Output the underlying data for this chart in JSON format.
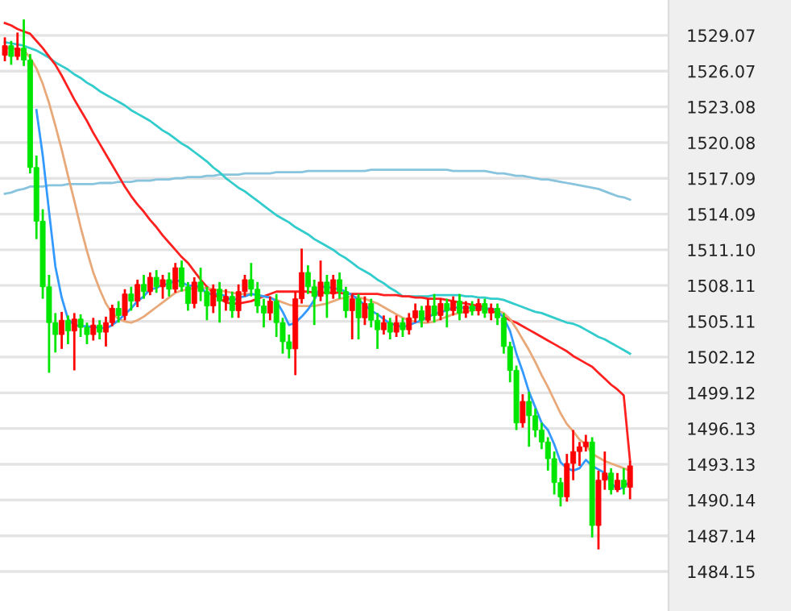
{
  "chart_data": {
    "type": "candlestick",
    "categories": [
      null,
      null,
      null,
      null,
      null,
      null,
      null,
      null,
      null,
      null,
      null,
      null,
      null,
      null,
      null,
      null,
      null,
      null,
      null,
      null,
      null,
      null,
      null,
      null,
      null,
      null,
      null,
      null,
      null,
      null,
      null,
      null,
      null,
      null,
      null,
      null,
      null,
      null,
      null,
      null,
      null,
      null,
      null,
      null,
      null,
      null,
      null,
      null,
      null,
      null,
      null,
      null,
      null,
      null,
      null,
      null,
      null,
      null,
      null,
      null,
      null,
      null,
      null,
      null,
      null,
      null,
      null,
      null,
      null,
      null,
      null,
      null,
      null,
      null,
      null,
      null,
      null,
      null,
      null,
      null,
      null,
      null,
      null,
      null,
      null,
      null,
      null,
      null,
      null,
      null,
      null,
      null,
      null,
      null,
      null,
      null,
      null,
      null,
      null,
      null
    ],
    "ohlc": [
      [
        1527.4,
        1528.9,
        1526.9,
        1528.2
      ],
      [
        1528.2,
        1528.6,
        1526.6,
        1527.3
      ],
      [
        1527.3,
        1529.3,
        1527.0,
        1528.0
      ],
      [
        1528.0,
        1530.4,
        1526.5,
        1527.0
      ],
      [
        1527.0,
        1527.5,
        1517.5,
        1518.0
      ],
      [
        1518.0,
        1519.0,
        1512.0,
        1513.5
      ],
      [
        1513.5,
        1514.5,
        1507.0,
        1508.0
      ],
      [
        1508.0,
        1509.0,
        1500.8,
        1505.0
      ],
      [
        1505.0,
        1505.8,
        1502.5,
        1504.0
      ],
      [
        1504.0,
        1505.9,
        1502.8,
        1505.2
      ],
      [
        1505.2,
        1505.6,
        1503.2,
        1504.3
      ],
      [
        1504.3,
        1505.8,
        1501.0,
        1505.3
      ],
      [
        1505.3,
        1505.7,
        1503.8,
        1504.6
      ],
      [
        1504.6,
        1505.0,
        1503.2,
        1504.0
      ],
      [
        1504.0,
        1505.4,
        1503.5,
        1504.8
      ],
      [
        1504.8,
        1505.2,
        1503.6,
        1504.2
      ],
      [
        1504.2,
        1505.5,
        1503.0,
        1505.0
      ],
      [
        1505.0,
        1506.5,
        1504.7,
        1506.2
      ],
      [
        1506.2,
        1506.8,
        1505.0,
        1505.6
      ],
      [
        1505.6,
        1507.8,
        1505.2,
        1507.4
      ],
      [
        1507.4,
        1508.0,
        1506.0,
        1506.8
      ],
      [
        1506.8,
        1508.6,
        1506.3,
        1508.2
      ],
      [
        1508.2,
        1509.0,
        1507.0,
        1507.6
      ],
      [
        1507.6,
        1509.2,
        1507.3,
        1508.8
      ],
      [
        1508.8,
        1509.4,
        1507.5,
        1508.0
      ],
      [
        1508.0,
        1509.0,
        1507.0,
        1508.6
      ],
      [
        1508.6,
        1509.2,
        1507.2,
        1507.8
      ],
      [
        1507.8,
        1510.0,
        1507.5,
        1509.6
      ],
      [
        1509.6,
        1510.2,
        1507.6,
        1508.0
      ],
      [
        1508.0,
        1508.4,
        1506.0,
        1506.6
      ],
      [
        1506.6,
        1508.8,
        1506.2,
        1508.4
      ],
      [
        1508.4,
        1509.6,
        1506.8,
        1507.6
      ],
      [
        1507.6,
        1508.0,
        1505.2,
        1506.4
      ],
      [
        1506.4,
        1508.2,
        1505.8,
        1507.8
      ],
      [
        1507.8,
        1508.4,
        1505.0,
        1506.8
      ],
      [
        1506.8,
        1507.8,
        1506.0,
        1507.2
      ],
      [
        1507.2,
        1507.6,
        1505.4,
        1506.0
      ],
      [
        1506.0,
        1508.2,
        1505.4,
        1507.6
      ],
      [
        1507.6,
        1509.0,
        1507.2,
        1508.6
      ],
      [
        1508.6,
        1510.0,
        1507.2,
        1507.8
      ],
      [
        1507.8,
        1508.4,
        1505.8,
        1506.4
      ],
      [
        1506.4,
        1507.0,
        1504.6,
        1505.8
      ],
      [
        1505.8,
        1507.2,
        1505.2,
        1506.8
      ],
      [
        1506.8,
        1507.4,
        1503.8,
        1505.0
      ],
      [
        1505.0,
        1505.4,
        1502.4,
        1503.4
      ],
      [
        1503.4,
        1504.0,
        1502.0,
        1502.8
      ],
      [
        1502.8,
        1507.6,
        1500.6,
        1507.0
      ],
      [
        1507.0,
        1511.2,
        1506.6,
        1509.2
      ],
      [
        1509.2,
        1509.8,
        1507.4,
        1508.0
      ],
      [
        1508.0,
        1508.6,
        1504.8,
        1507.2
      ],
      [
        1507.2,
        1510.2,
        1506.8,
        1508.4
      ],
      [
        1508.4,
        1509.0,
        1505.4,
        1507.4
      ],
      [
        1507.4,
        1509.0,
        1507.0,
        1508.6
      ],
      [
        1508.6,
        1509.2,
        1507.0,
        1507.6
      ],
      [
        1507.6,
        1508.0,
        1505.4,
        1506.0
      ],
      [
        1506.0,
        1507.4,
        1503.6,
        1507.0
      ],
      [
        1507.0,
        1507.4,
        1503.6,
        1505.4
      ],
      [
        1505.4,
        1507.2,
        1504.8,
        1506.6
      ],
      [
        1506.6,
        1507.0,
        1504.6,
        1505.2
      ],
      [
        1505.2,
        1505.8,
        1502.8,
        1504.4
      ],
      [
        1504.4,
        1505.6,
        1504.0,
        1505.0
      ],
      [
        1505.0,
        1505.4,
        1503.6,
        1504.2
      ],
      [
        1504.2,
        1505.6,
        1503.8,
        1505.0
      ],
      [
        1505.0,
        1505.4,
        1503.8,
        1504.4
      ],
      [
        1504.4,
        1505.8,
        1504.0,
        1505.4
      ],
      [
        1505.4,
        1506.6,
        1505.0,
        1506.0
      ],
      [
        1506.0,
        1506.4,
        1504.6,
        1505.2
      ],
      [
        1505.2,
        1507.0,
        1505.0,
        1506.4
      ],
      [
        1506.4,
        1507.4,
        1505.0,
        1505.6
      ],
      [
        1505.6,
        1507.0,
        1505.2,
        1506.6
      ],
      [
        1506.6,
        1507.0,
        1504.6,
        1506.0
      ],
      [
        1506.0,
        1507.2,
        1505.6,
        1506.8
      ],
      [
        1506.8,
        1507.4,
        1505.2,
        1505.8
      ],
      [
        1505.8,
        1506.8,
        1505.4,
        1506.4
      ],
      [
        1506.4,
        1506.8,
        1505.6,
        1506.0
      ],
      [
        1506.0,
        1507.0,
        1505.6,
        1506.6
      ],
      [
        1506.6,
        1507.0,
        1505.4,
        1505.8
      ],
      [
        1505.8,
        1506.6,
        1505.2,
        1506.2
      ],
      [
        1506.2,
        1506.6,
        1504.8,
        1505.4
      ],
      [
        1505.4,
        1505.8,
        1502.4,
        1503.0
      ],
      [
        1503.0,
        1503.4,
        1500.0,
        1501.0
      ],
      [
        1501.0,
        1501.4,
        1496.0,
        1496.6
      ],
      [
        1496.6,
        1499.0,
        1496.2,
        1498.4
      ],
      [
        1498.4,
        1499.2,
        1494.6,
        1497.2
      ],
      [
        1497.2,
        1497.8,
        1495.4,
        1496.0
      ],
      [
        1496.0,
        1496.6,
        1494.4,
        1495.0
      ],
      [
        1495.0,
        1495.4,
        1492.6,
        1493.6
      ],
      [
        1493.6,
        1494.2,
        1490.6,
        1491.6
      ],
      [
        1491.6,
        1492.0,
        1489.6,
        1490.4
      ],
      [
        1490.4,
        1494.0,
        1490.0,
        1493.2
      ],
      [
        1493.2,
        1496.0,
        1491.8,
        1494.2
      ],
      [
        1494.2,
        1495.0,
        1493.0,
        1494.6
      ],
      [
        1494.6,
        1495.6,
        1494.2,
        1495.0
      ],
      [
        1495.0,
        1495.4,
        1487.0,
        1488.0
      ],
      [
        1488.0,
        1492.6,
        1486.0,
        1491.8
      ],
      [
        1491.8,
        1494.2,
        1491.0,
        1492.4
      ],
      [
        1492.4,
        1492.8,
        1490.6,
        1491.0
      ],
      [
        1491.0,
        1492.4,
        1490.8,
        1491.8
      ],
      [
        1491.8,
        1492.8,
        1490.6,
        1491.2
      ],
      [
        1491.2,
        1493.4,
        1490.2,
        1493.0
      ]
    ],
    "colors": [
      "#ff0000",
      "#00e600",
      "#ff0000",
      "#00e600",
      "#00e600",
      "#00e600",
      "#00e600",
      "#00e600",
      "#00e600",
      "#ff0000",
      "#00e600",
      "#ff0000",
      "#00e600",
      "#00e600",
      "#ff0000",
      "#00e600",
      "#ff0000",
      "#ff0000",
      "#00e600",
      "#ff0000",
      "#00e600",
      "#ff0000",
      "#00e600",
      "#ff0000",
      "#00e600",
      "#ff0000",
      "#00e600",
      "#ff0000",
      "#00e600",
      "#00e600",
      "#ff0000",
      "#00e600",
      "#00e600",
      "#ff0000",
      "#00e600",
      "#ff0000",
      "#00e600",
      "#ff0000",
      "#ff0000",
      "#00e600",
      "#00e600",
      "#00e600",
      "#ff0000",
      "#00e600",
      "#00e600",
      "#00e600",
      "#ff0000",
      "#ff0000",
      "#00e600",
      "#00e600",
      "#ff0000",
      "#00e600",
      "#ff0000",
      "#00e600",
      "#00e600",
      "#ff0000",
      "#00e600",
      "#ff0000",
      "#00e600",
      "#00e600",
      "#ff0000",
      "#00e600",
      "#ff0000",
      "#00e600",
      "#ff0000",
      "#ff0000",
      "#00e600",
      "#ff0000",
      "#00e600",
      "#ff0000",
      "#00e600",
      "#ff0000",
      "#00e600",
      "#ff0000",
      "#00e600",
      "#ff0000",
      "#00e600",
      "#ff0000",
      "#00e600",
      "#00e600",
      "#00e600",
      "#00e600",
      "#ff0000",
      "#00e600",
      "#00e600",
      "#00e600",
      "#00e600",
      "#00e600",
      "#00e600",
      "#ff0000",
      "#ff0000",
      "#ff0000",
      "#ff0000",
      "#00e600",
      "#ff0000",
      "#ff0000",
      "#00e600",
      "#ff0000",
      "#00e600",
      "#ff0000"
    ],
    "series": [
      {
        "type": "line",
        "color": "#88c4dd",
        "values": [
          1515.8,
          1515.9,
          1516.1,
          1516.2,
          1516.4,
          1516.4,
          1516.4,
          1516.5,
          1516.5,
          1516.5,
          1516.6,
          1516.6,
          1516.6,
          1516.6,
          1516.6,
          1516.7,
          1516.7,
          1516.7,
          1516.8,
          1516.8,
          1516.8,
          1516.9,
          1516.9,
          1516.9,
          1517.0,
          1517.0,
          1517.0,
          1517.1,
          1517.1,
          1517.2,
          1517.2,
          1517.2,
          1517.3,
          1517.3,
          1517.4,
          1517.4,
          1517.4,
          1517.4,
          1517.5,
          1517.5,
          1517.5,
          1517.5,
          1517.5,
          1517.6,
          1517.6,
          1517.6,
          1517.6,
          1517.6,
          1517.7,
          1517.7,
          1517.7,
          1517.7,
          1517.7,
          1517.7,
          1517.7,
          1517.7,
          1517.7,
          1517.7,
          1517.8,
          1517.8,
          1517.8,
          1517.8,
          1517.8,
          1517.8,
          1517.8,
          1517.8,
          1517.8,
          1517.8,
          1517.8,
          1517.8,
          1517.8,
          1517.7,
          1517.7,
          1517.7,
          1517.7,
          1517.7,
          1517.7,
          1517.6,
          1517.5,
          1517.5,
          1517.4,
          1517.3,
          1517.3,
          1517.2,
          1517.1,
          1517.0,
          1517.0,
          1516.9,
          1516.8,
          1516.7,
          1516.6,
          1516.5,
          1516.4,
          1516.3,
          1516.2,
          1516.0,
          1515.8,
          1515.6,
          1515.5,
          1515.3
        ]
      },
      {
        "type": "line",
        "color": "#33cccc",
        "values": [
          1528.5,
          1528.4,
          1528.3,
          1528.2,
          1528.0,
          1527.8,
          1527.5,
          1527.2,
          1526.8,
          1526.5,
          1526.2,
          1525.8,
          1525.5,
          1525.1,
          1524.8,
          1524.4,
          1524.1,
          1523.8,
          1523.5,
          1523.2,
          1522.8,
          1522.5,
          1522.2,
          1521.9,
          1521.5,
          1521.1,
          1520.8,
          1520.4,
          1520.0,
          1519.7,
          1519.3,
          1518.9,
          1518.5,
          1518.0,
          1517.6,
          1517.1,
          1516.7,
          1516.3,
          1516.0,
          1515.6,
          1515.2,
          1514.8,
          1514.4,
          1514.0,
          1513.7,
          1513.4,
          1513.0,
          1512.7,
          1512.4,
          1512.0,
          1511.7,
          1511.4,
          1511.1,
          1510.7,
          1510.4,
          1510.0,
          1509.6,
          1509.3,
          1509.0,
          1508.6,
          1508.3,
          1507.9,
          1507.6,
          1507.2,
          1507.2,
          1507.2,
          1507.2,
          1507.2,
          1507.3,
          1507.3,
          1507.3,
          1507.3,
          1507.3,
          1507.2,
          1507.2,
          1507.1,
          1507.1,
          1507.0,
          1507.0,
          1506.9,
          1506.7,
          1506.5,
          1506.3,
          1506.1,
          1505.9,
          1505.8,
          1505.6,
          1505.4,
          1505.2,
          1505.0,
          1504.9,
          1504.7,
          1504.4,
          1504.1,
          1503.8,
          1503.6,
          1503.3,
          1503.0,
          1502.7,
          1502.4
        ]
      },
      {
        "type": "line",
        "color": "#ff2020",
        "values": [
          1530.1,
          1529.9,
          1529.6,
          1529.4,
          1529.2,
          1528.6,
          1528.0,
          1527.3,
          1526.6,
          1525.7,
          1524.7,
          1523.7,
          1522.8,
          1521.9,
          1520.9,
          1520.0,
          1519.1,
          1518.2,
          1517.3,
          1516.4,
          1515.6,
          1514.9,
          1514.3,
          1513.6,
          1513.0,
          1512.3,
          1511.7,
          1511.1,
          1510.5,
          1510.0,
          1509.3,
          1508.6,
          1508.0,
          1507.5,
          1507.0,
          1506.7,
          1506.6,
          1506.6,
          1506.7,
          1506.8,
          1507.0,
          1507.2,
          1507.4,
          1507.6,
          1507.6,
          1507.6,
          1507.6,
          1507.6,
          1507.6,
          1507.5,
          1507.5,
          1507.5,
          1507.5,
          1507.5,
          1507.4,
          1507.4,
          1507.4,
          1507.4,
          1507.4,
          1507.4,
          1507.3,
          1507.3,
          1507.3,
          1507.2,
          1507.2,
          1507.1,
          1507.1,
          1507.0,
          1507.0,
          1507.0,
          1506.9,
          1506.8,
          1506.7,
          1506.6,
          1506.5,
          1506.4,
          1506.3,
          1506.0,
          1505.8,
          1505.5,
          1505.2,
          1505.0,
          1504.7,
          1504.4,
          1504.1,
          1503.8,
          1503.5,
          1503.2,
          1502.9,
          1502.6,
          1502.2,
          1501.9,
          1501.6,
          1501.3,
          1500.8,
          1500.3,
          1499.8,
          1499.4,
          1498.9,
          1493.4
        ]
      },
      {
        "type": "line",
        "color": "#e8a878",
        "values": [
          1528.0,
          1528.0,
          1527.9,
          1527.8,
          1527.2,
          1526.3,
          1525.0,
          1523.4,
          1521.5,
          1519.5,
          1517.3,
          1515.2,
          1513.0,
          1511.0,
          1509.2,
          1507.8,
          1506.6,
          1505.8,
          1505.3,
          1505.1,
          1505.0,
          1505.2,
          1505.5,
          1505.9,
          1506.3,
          1506.7,
          1507.1,
          1507.5,
          1507.7,
          1507.8,
          1507.9,
          1507.9,
          1507.9,
          1507.8,
          1507.7,
          1507.6,
          1507.5,
          1507.4,
          1507.4,
          1507.4,
          1507.3,
          1507.2,
          1507.1,
          1506.9,
          1506.7,
          1506.5,
          1506.4,
          1506.4,
          1506.4,
          1506.4,
          1506.5,
          1506.6,
          1506.8,
          1507.0,
          1507.1,
          1507.2,
          1507.1,
          1507.0,
          1506.8,
          1506.6,
          1506.3,
          1506.0,
          1505.7,
          1505.4,
          1505.2,
          1505.1,
          1505.0,
          1505.0,
          1505.1,
          1505.3,
          1505.5,
          1505.7,
          1505.8,
          1505.9,
          1506.0,
          1506.1,
          1506.1,
          1506.1,
          1506.0,
          1505.8,
          1505.3,
          1504.5,
          1503.6,
          1502.7,
          1501.7,
          1500.6,
          1499.6,
          1498.5,
          1497.4,
          1496.5,
          1495.9,
          1495.2,
          1494.8,
          1494.0,
          1493.7,
          1493.4,
          1493.2,
          1493.0,
          1492.8,
          1492.6
        ]
      },
      {
        "type": "line",
        "color": "#3399ff",
        "values": [
          null,
          null,
          null,
          null,
          null,
          1522.8,
          1519.0,
          1514.3,
          1509.7,
          1507.1,
          1505.3,
          1504.8,
          1504.7,
          1504.7,
          1504.6,
          1504.6,
          1504.5,
          1504.8,
          1505.2,
          1505.7,
          1506.2,
          1506.8,
          1507.2,
          1507.8,
          1507.9,
          1508.2,
          1508.2,
          1508.6,
          1508.4,
          1508.1,
          1508.1,
          1508.0,
          1507.4,
          1507.4,
          1507.4,
          1507.2,
          1506.8,
          1507.1,
          1507.2,
          1507.4,
          1507.3,
          1507.2,
          1507.1,
          1506.8,
          1505.9,
          1504.8,
          1505.0,
          1505.5,
          1506.1,
          1506.9,
          1508.0,
          1508.0,
          1507.9,
          1507.8,
          1507.6,
          1507.3,
          1506.9,
          1506.5,
          1506.0,
          1505.7,
          1505.3,
          1504.9,
          1504.8,
          1504.6,
          1504.8,
          1505.0,
          1505.2,
          1505.5,
          1505.7,
          1505.9,
          1506.0,
          1506.3,
          1506.2,
          1506.3,
          1506.2,
          1506.3,
          1506.1,
          1506.2,
          1506.0,
          1505.4,
          1504.3,
          1502.4,
          1500.9,
          1499.2,
          1497.9,
          1496.6,
          1496.0,
          1494.8,
          1493.3,
          1492.8,
          1492.6,
          1492.8,
          1493.5,
          1493.0,
          1492.7,
          1492.4,
          1491.6,
          1491.0,
          1491.2,
          1491.7
        ]
      }
    ],
    "ylim": [
      1480.84,
      1532.03
    ],
    "yticks": [
      {
        "value": 1529.07,
        "label": "1529.07"
      },
      {
        "value": 1526.07,
        "label": "1526.07"
      },
      {
        "value": 1523.08,
        "label": "1523.08"
      },
      {
        "value": 1520.08,
        "label": "1520.08"
      },
      {
        "value": 1517.09,
        "label": "1517.09"
      },
      {
        "value": 1514.09,
        "label": "1514.09"
      },
      {
        "value": 1511.1,
        "label": "1511.10"
      },
      {
        "value": 1508.11,
        "label": "1508.11"
      },
      {
        "value": 1505.11,
        "label": "1505.11"
      },
      {
        "value": 1502.12,
        "label": "1502.12"
      },
      {
        "value": 1499.12,
        "label": "1499.12"
      },
      {
        "value": 1496.13,
        "label": "1496.13"
      },
      {
        "value": 1493.13,
        "label": "1493.13"
      },
      {
        "value": 1490.14,
        "label": "1490.14"
      },
      {
        "value": 1487.14,
        "label": "1487.14"
      },
      {
        "value": 1484.15,
        "label": "1484.15"
      }
    ],
    "grid": "y",
    "tick_labels": "y"
  }
}
